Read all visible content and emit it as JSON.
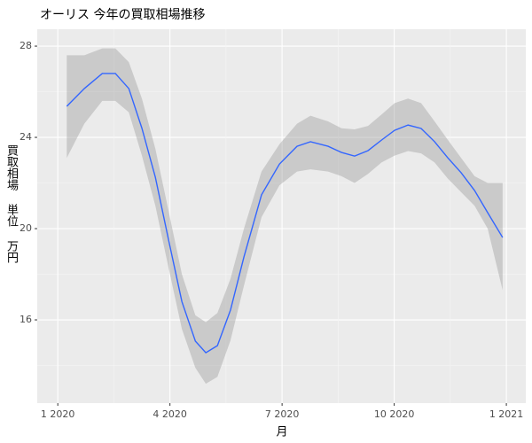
{
  "chart_data": {
    "type": "line",
    "title": "オーリス 今年の買取相場推移",
    "x_label": "月",
    "y_label": "買取相場 単位 万円",
    "x": [
      1.24,
      1.71,
      2.19,
      2.54,
      2.9,
      3.25,
      3.61,
      3.96,
      4.32,
      4.68,
      4.96,
      5.27,
      5.62,
      5.98,
      6.45,
      6.93,
      7.4,
      7.76,
      8.23,
      8.59,
      8.94,
      9.3,
      9.66,
      10.01,
      10.37,
      10.72,
      11.08,
      11.43,
      11.79,
      12.15,
      12.5,
      12.9
    ],
    "series": [
      {
        "color": "#3366ff",
        "values": [
          25.36,
          26.14,
          26.8,
          26.8,
          26.14,
          24.4,
          22.25,
          19.53,
          16.8,
          15.07,
          14.56,
          14.87,
          16.43,
          18.76,
          21.48,
          22.83,
          23.61,
          23.81,
          23.61,
          23.34,
          23.18,
          23.42,
          23.88,
          24.31,
          24.54,
          24.39,
          23.81,
          23.11,
          22.45,
          21.67,
          20.7,
          19.61
        ]
      }
    ],
    "upper": [
      27.6,
      27.6,
      27.9,
      27.9,
      27.3,
      25.7,
      23.5,
      20.8,
      18.0,
      16.2,
      15.9,
      16.3,
      17.8,
      20.0,
      22.5,
      23.7,
      24.6,
      24.95,
      24.7,
      24.4,
      24.35,
      24.5,
      25.0,
      25.5,
      25.7,
      25.5,
      24.7,
      23.9,
      23.1,
      22.3,
      22.0,
      22.0
    ],
    "lower": [
      23.1,
      24.6,
      25.6,
      25.6,
      25.1,
      23.2,
      21.0,
      18.3,
      15.6,
      13.9,
      13.2,
      13.5,
      15.1,
      17.5,
      20.5,
      21.9,
      22.5,
      22.6,
      22.5,
      22.3,
      22.0,
      22.4,
      22.9,
      23.2,
      23.4,
      23.3,
      22.9,
      22.2,
      21.6,
      21.0,
      20.0,
      17.3
    ],
    "band_color": "#999999",
    "xlim": [
      0.45,
      13.52
    ],
    "ylim": [
      12.35,
      28.74
    ],
    "xticks": [
      {
        "value": 1,
        "label": "1 2020"
      },
      {
        "value": 4,
        "label": "4 2020"
      },
      {
        "value": 7,
        "label": "7 2020"
      },
      {
        "value": 10,
        "label": "10 2020"
      },
      {
        "value": 13,
        "label": "1 2021"
      }
    ],
    "yticks": [
      16,
      20,
      24,
      28
    ],
    "grid": true
  }
}
